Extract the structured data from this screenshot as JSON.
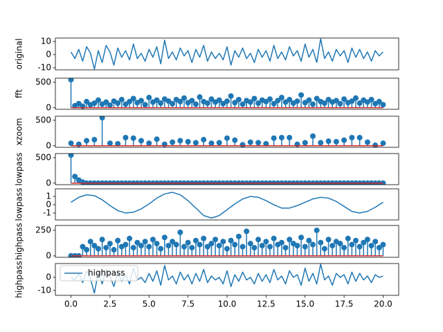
{
  "chart_data": [
    {
      "type": "line",
      "ylabel": "original",
      "color": "#1f77b4",
      "xlim": [
        -1,
        21
      ],
      "ylim": [
        -11.6,
        12.6
      ],
      "yticks": [
        -10,
        0,
        10
      ],
      "x": [
        0,
        0.25,
        0.5,
        0.75,
        1,
        1.25,
        1.5,
        1.75,
        2,
        2.25,
        2.5,
        2.75,
        3,
        3.25,
        3.5,
        3.75,
        4,
        4.25,
        4.5,
        4.75,
        5,
        5.25,
        5.5,
        5.75,
        6,
        6.25,
        6.5,
        6.75,
        7,
        7.25,
        7.5,
        7.75,
        8,
        8.25,
        8.5,
        8.75,
        9,
        9.25,
        9.5,
        9.75,
        10,
        10.25,
        10.5,
        10.75,
        11,
        11.25,
        11.5,
        11.75,
        12,
        12.25,
        12.5,
        12.75,
        13,
        13.25,
        13.5,
        13.75,
        14,
        14.25,
        14.5,
        14.75,
        15,
        15.25,
        15.5,
        15.75,
        16,
        16.25,
        16.5,
        16.75,
        17,
        17.25,
        17.5,
        17.75,
        18,
        18.25,
        18.5,
        18.75,
        19,
        19.25,
        19.5,
        19.75,
        20
      ],
      "values": [
        2,
        -3,
        4,
        -5,
        6,
        1,
        -11,
        3,
        -6,
        7,
        2,
        -8,
        5,
        -2,
        3,
        -4,
        8,
        -3,
        1,
        -5,
        4,
        -2,
        6,
        -7,
        11,
        -3,
        2,
        -4,
        5,
        -1,
        3,
        -6,
        4,
        -2,
        7,
        -5,
        2,
        -3,
        1,
        -4,
        6,
        -8,
        3,
        -2,
        5,
        -3,
        1,
        -6,
        4,
        -2,
        3,
        -5,
        7,
        -3,
        2,
        -4,
        6,
        -1,
        3,
        -5,
        8,
        -2,
        4,
        -6,
        12,
        -3,
        2,
        -5,
        4,
        -1,
        3,
        -6,
        5,
        -2,
        4,
        -3,
        2,
        -5,
        3,
        -1,
        2
      ]
    },
    {
      "type": "stem",
      "ylabel": "fft",
      "color": "#1f77b4",
      "baseline_color": "#d62728",
      "xlim": [
        -1,
        21
      ],
      "ylim": [
        -30,
        580
      ],
      "yticks": [
        0,
        500
      ],
      "x": [
        0,
        0.25,
        0.5,
        0.75,
        1,
        1.25,
        1.5,
        1.75,
        2,
        2.25,
        2.5,
        2.75,
        3,
        3.25,
        3.5,
        3.75,
        4,
        4.25,
        4.5,
        4.75,
        5,
        5.25,
        5.5,
        5.75,
        6,
        6.25,
        6.5,
        6.75,
        7,
        7.25,
        7.5,
        7.75,
        8,
        8.25,
        8.5,
        8.75,
        9,
        9.25,
        9.5,
        9.75,
        10,
        10.25,
        10.5,
        10.75,
        11,
        11.25,
        11.5,
        11.75,
        12,
        12.25,
        12.5,
        12.75,
        13,
        13.25,
        13.5,
        13.75,
        14,
        14.25,
        14.5,
        14.75,
        15,
        15.25,
        15.5,
        15.75,
        16,
        16.25,
        16.5,
        16.75,
        17,
        17.25,
        17.5,
        17.75,
        18,
        18.25,
        18.5,
        18.75,
        19,
        19.25,
        19.5,
        19.75,
        20
      ],
      "values": [
        550,
        40,
        80,
        30,
        120,
        60,
        90,
        150,
        70,
        110,
        50,
        130,
        90,
        160,
        70,
        120,
        180,
        100,
        140,
        60,
        200,
        110,
        150,
        90,
        170,
        130,
        80,
        160,
        120,
        190,
        100,
        140,
        70,
        210,
        120,
        90,
        170,
        110,
        150,
        80,
        130,
        230,
        100,
        160,
        70,
        140,
        110,
        180,
        90,
        150,
        120,
        170,
        80,
        140,
        200,
        110,
        160,
        90,
        130,
        250,
        100,
        150,
        70,
        180,
        120,
        90,
        160,
        110,
        140,
        80,
        170,
        100,
        130,
        190,
        90,
        150,
        110,
        160,
        80,
        120,
        60
      ]
    },
    {
      "type": "stem",
      "ylabel": "xzoom",
      "color": "#1f77b4",
      "baseline_color": "#d62728",
      "xlim": [
        -1,
        21
      ],
      "ylim": [
        -30,
        580
      ],
      "yticks": [
        0,
        500
      ],
      "x": [
        0,
        0.5,
        1,
        1.5,
        2,
        2.5,
        3,
        3.5,
        4,
        4.5,
        5,
        5.5,
        6,
        6.5,
        7,
        7.5,
        8,
        8.5,
        9,
        9.5,
        10,
        10.5,
        11,
        11.5,
        12,
        12.5,
        13,
        13.5,
        14,
        14.5,
        15,
        15.5,
        16,
        16.5,
        17,
        17.5,
        18,
        18.5,
        19,
        19.5,
        20
      ],
      "values": [
        50,
        30,
        100,
        120,
        550,
        50,
        40,
        160,
        150,
        100,
        50,
        130,
        30,
        70,
        100,
        80,
        60,
        120,
        50,
        60,
        150,
        110,
        20,
        70,
        60,
        40,
        150,
        160,
        160,
        30,
        60,
        190,
        60,
        90,
        80,
        110,
        160,
        160,
        70,
        10,
        50
      ]
    },
    {
      "type": "stem",
      "ylabel": "lowpass",
      "color": "#1f77b4",
      "baseline_color": "#d62728",
      "xlim": [
        -1,
        21
      ],
      "ylim": [
        -30,
        580
      ],
      "yticks": [
        0,
        500
      ],
      "x": [
        0,
        0.25,
        0.5,
        0.75,
        1,
        1.25,
        1.5,
        1.75,
        2,
        2.25,
        2.5,
        2.75,
        3,
        3.25,
        3.5,
        3.75,
        4,
        4.25,
        4.5,
        4.75,
        5,
        5.25,
        5.5,
        5.75,
        6,
        6.25,
        6.5,
        6.75,
        7,
        7.25,
        7.5,
        7.75,
        8,
        8.25,
        8.5,
        8.75,
        9,
        9.25,
        9.5,
        9.75,
        10,
        10.25,
        10.5,
        10.75,
        11,
        11.25,
        11.5,
        11.75,
        12,
        12.25,
        12.5,
        12.75,
        13,
        13.25,
        13.5,
        13.75,
        14,
        14.25,
        14.5,
        14.75,
        15,
        15.25,
        15.5,
        15.75,
        16,
        16.25,
        16.5,
        16.75,
        17,
        17.25,
        17.5,
        17.75,
        18,
        18.25,
        18.5,
        18.75,
        19,
        19.25,
        19.5,
        19.75,
        20
      ],
      "values": [
        550,
        130,
        60,
        20,
        0,
        0,
        0,
        0,
        0,
        0,
        0,
        0,
        0,
        0,
        0,
        0,
        0,
        0,
        0,
        0,
        0,
        0,
        0,
        0,
        0,
        0,
        0,
        0,
        0,
        0,
        0,
        0,
        0,
        0,
        0,
        0,
        0,
        0,
        0,
        0,
        0,
        0,
        0,
        0,
        0,
        0,
        0,
        0,
        0,
        0,
        0,
        0,
        0,
        0,
        0,
        0,
        0,
        0,
        0,
        0,
        0,
        0,
        0,
        0,
        0,
        0,
        0,
        0,
        0,
        0,
        0,
        0,
        0,
        0,
        0,
        0,
        0,
        0,
        0,
        0,
        0
      ]
    },
    {
      "type": "line",
      "ylabel": "lowpass",
      "color": "#1f77b4",
      "xlim": [
        -1,
        21
      ],
      "ylim": [
        -1.83,
        1.92
      ],
      "yticks": [
        -1,
        0,
        1
      ],
      "x": [
        0,
        0.5,
        1,
        1.5,
        2,
        2.5,
        3,
        3.5,
        4,
        4.5,
        5,
        5.5,
        6,
        6.5,
        7,
        7.5,
        8,
        8.5,
        9,
        9.5,
        10,
        10.5,
        11,
        11.5,
        12,
        12.5,
        13,
        13.5,
        14,
        14.5,
        15,
        15.5,
        16,
        16.5,
        17,
        17.5,
        18,
        18.5,
        19,
        19.5,
        20
      ],
      "values": [
        0.3,
        0.9,
        1.2,
        1.1,
        0.6,
        -0.1,
        -0.7,
        -1.0,
        -0.9,
        -0.5,
        0.1,
        0.8,
        1.3,
        1.5,
        1.2,
        0.5,
        -0.4,
        -1.3,
        -1.6,
        -1.3,
        -0.6,
        0.1,
        0.7,
        1.0,
        0.9,
        0.5,
        0.0,
        -0.4,
        -0.4,
        -0.1,
        0.3,
        0.7,
        0.9,
        0.8,
        0.4,
        -0.2,
        -0.8,
        -1.0,
        -0.8,
        -0.3,
        0.3
      ]
    },
    {
      "type": "stem",
      "ylabel": "highpass",
      "color": "#1f77b4",
      "baseline_color": "#d62728",
      "xlim": [
        -1,
        21
      ],
      "ylim": [
        -14,
        297
      ],
      "yticks": [
        0,
        250
      ],
      "x": [
        0,
        0.25,
        0.5,
        0.75,
        1,
        1.25,
        1.5,
        1.75,
        2,
        2.25,
        2.5,
        2.75,
        3,
        3.25,
        3.5,
        3.75,
        4,
        4.25,
        4.5,
        4.75,
        5,
        5.25,
        5.5,
        5.75,
        6,
        6.25,
        6.5,
        6.75,
        7,
        7.25,
        7.5,
        7.75,
        8,
        8.25,
        8.5,
        8.75,
        9,
        9.25,
        9.5,
        9.75,
        10,
        10.25,
        10.5,
        10.75,
        11,
        11.25,
        11.5,
        11.75,
        12,
        12.25,
        12.5,
        12.75,
        13,
        13.25,
        13.5,
        13.75,
        14,
        14.25,
        14.5,
        14.75,
        15,
        15.25,
        15.5,
        15.75,
        16,
        16.25,
        16.5,
        16.75,
        17,
        17.25,
        17.5,
        17.75,
        18,
        18.25,
        18.5,
        18.75,
        19,
        19.25,
        19.5,
        19.75,
        20
      ],
      "values": [
        0,
        0,
        0,
        90,
        60,
        140,
        100,
        70,
        160,
        80,
        120,
        60,
        150,
        90,
        110,
        170,
        80,
        130,
        100,
        140,
        90,
        160,
        120,
        70,
        180,
        100,
        140,
        110,
        230,
        90,
        130,
        80,
        150,
        110,
        170,
        90,
        120,
        160,
        100,
        140,
        70,
        150,
        110,
        190,
        90,
        240,
        120,
        80,
        160,
        100,
        140,
        90,
        170,
        110,
        130,
        80,
        160,
        120,
        100,
        180,
        90,
        150,
        110,
        250,
        130,
        70,
        160,
        100,
        140,
        120,
        80,
        170,
        110,
        150,
        90,
        130,
        160,
        100,
        140,
        80,
        110
      ]
    },
    {
      "type": "line",
      "ylabel": "highpass",
      "xlim": [
        -1,
        21
      ],
      "ylim": [
        -13.7,
        10.5
      ],
      "yticks": [
        -10,
        0
      ],
      "legend": "upper left",
      "xticks": [
        {
          "value": 0,
          "label": "0.0"
        },
        {
          "value": 2.5,
          "label": "2.5"
        },
        {
          "value": 5,
          "label": "5.0"
        },
        {
          "value": 7.5,
          "label": "7.5"
        },
        {
          "value": 10,
          "label": "10.0"
        },
        {
          "value": 12.5,
          "label": "12.5"
        },
        {
          "value": 15,
          "label": "15.0"
        },
        {
          "value": 17.5,
          "label": "17.5"
        },
        {
          "value": 20,
          "label": "20.0"
        }
      ],
      "x": [
        0,
        0.25,
        0.5,
        0.75,
        1,
        1.25,
        1.5,
        1.75,
        2,
        2.25,
        2.5,
        2.75,
        3,
        3.25,
        3.5,
        3.75,
        4,
        4.25,
        4.5,
        4.75,
        5,
        5.25,
        5.5,
        5.75,
        6,
        6.25,
        6.5,
        6.75,
        7,
        7.25,
        7.5,
        7.75,
        8,
        8.25,
        8.5,
        8.75,
        9,
        9.25,
        9.5,
        9.75,
        10,
        10.25,
        10.5,
        10.75,
        11,
        11.25,
        11.5,
        11.75,
        12,
        12.25,
        12.5,
        12.75,
        13,
        13.25,
        13.5,
        13.75,
        14,
        14.25,
        14.5,
        14.75,
        15,
        15.25,
        15.5,
        15.75,
        16,
        16.25,
        16.5,
        16.75,
        17,
        17.25,
        17.5,
        17.75,
        18,
        18.25,
        18.5,
        18.75,
        19,
        19.25,
        19.5,
        19.75,
        20
      ],
      "series": [
        {
          "name": "highpass",
          "color": "#1f77b4",
          "values": [
            0,
            -2,
            3,
            -4,
            5,
            -1,
            -12,
            4,
            -5,
            6,
            1,
            -7,
            4,
            -3,
            2,
            -5,
            7,
            -2,
            0,
            -4,
            3,
            -3,
            5,
            -6,
            9,
            -2,
            1,
            -5,
            4,
            -2,
            2,
            -5,
            3,
            -3,
            6,
            -4,
            1,
            -2,
            0,
            -5,
            5,
            -7,
            2,
            -3,
            4,
            -2,
            0,
            -5,
            3,
            -3,
            2,
            -4,
            6,
            -2,
            1,
            -5,
            5,
            0,
            2,
            -6,
            7,
            -3,
            3,
            -5,
            10,
            -2,
            1,
            -6,
            3,
            0,
            2,
            -5,
            4,
            -3,
            3,
            -2,
            1,
            -4,
            2,
            0,
            1
          ]
        }
      ]
    }
  ]
}
